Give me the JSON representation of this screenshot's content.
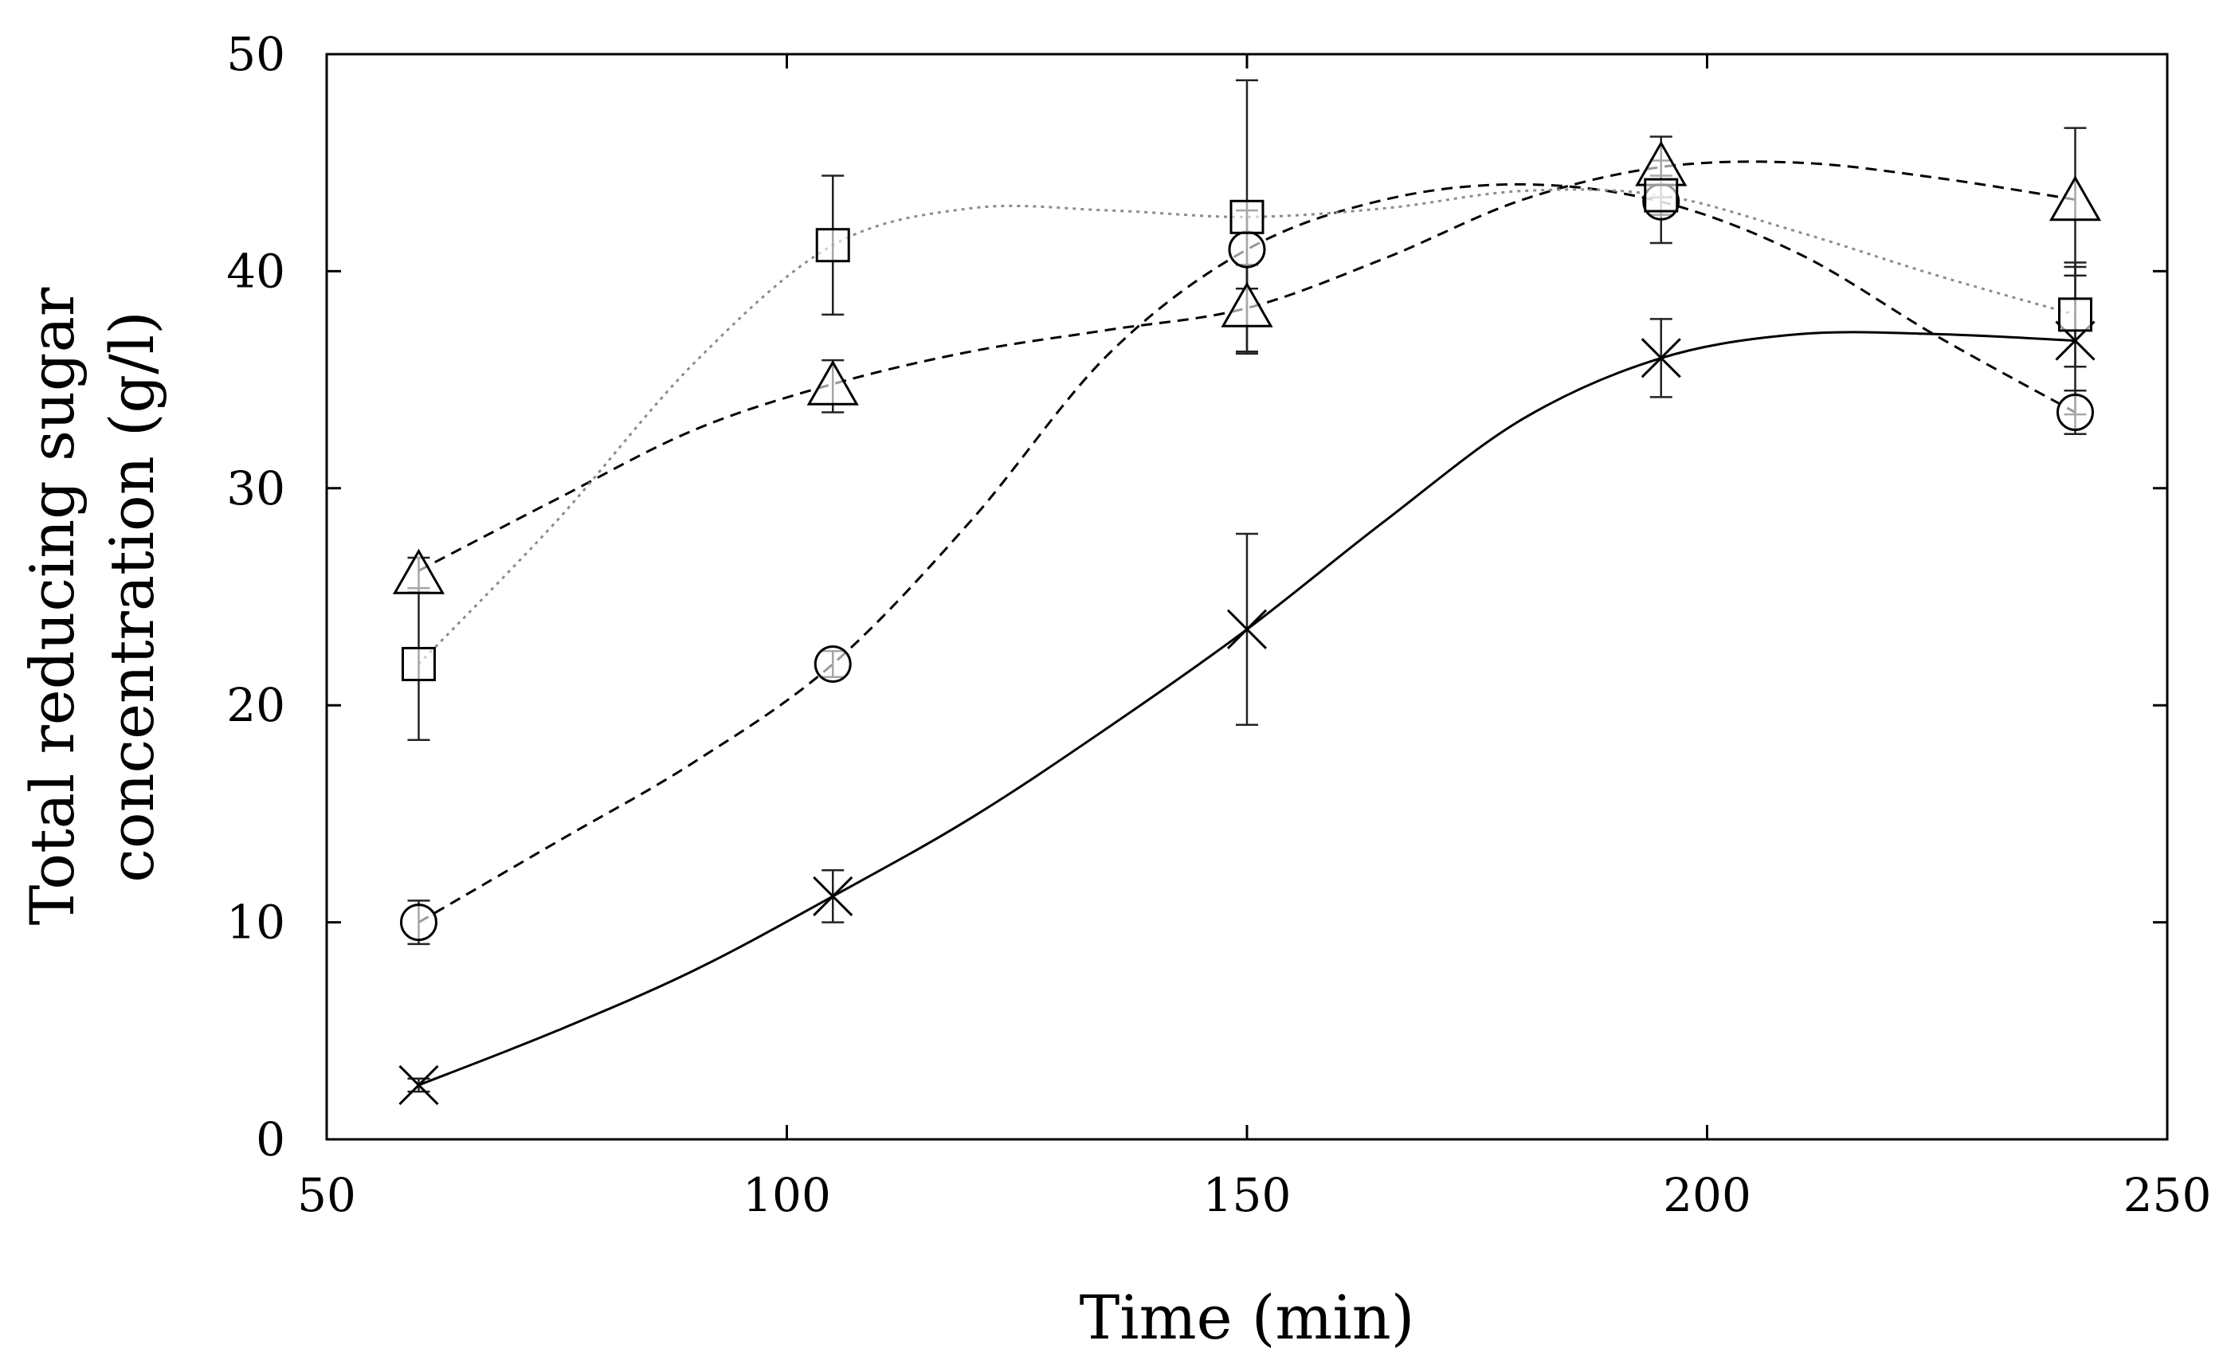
{
  "chart_data": {
    "type": "line",
    "title": "",
    "xlabel": "Time (min)",
    "ylabel_lines": [
      "Total reducing sugar",
      "concentration (g/l)"
    ],
    "xlim": [
      50,
      250
    ],
    "ylim": [
      0,
      50
    ],
    "xticks": [
      50,
      100,
      150,
      200,
      250
    ],
    "yticks": [
      0,
      10,
      20,
      30,
      40,
      50
    ],
    "xtick_labels": [
      "50",
      "100",
      "150",
      "200",
      "250"
    ],
    "ytick_labels": [
      "0",
      "10",
      "20",
      "30",
      "40",
      "50"
    ],
    "grid": false,
    "x": [
      60,
      105,
      150,
      195,
      240
    ],
    "series": [
      {
        "name": "cross",
        "marker": "x",
        "line_style": "solid",
        "color": "#000000",
        "values": [
          2.5,
          11.2,
          23.5,
          36.0,
          36.8
        ],
        "errors": [
          0.3,
          1.2,
          4.4,
          1.8,
          3.4
        ],
        "curve": [
          [
            60,
            2.5
          ],
          [
            75,
            5.0
          ],
          [
            90,
            7.8
          ],
          [
            105,
            11.2
          ],
          [
            120,
            14.8
          ],
          [
            135,
            19.0
          ],
          [
            150,
            23.5
          ],
          [
            165,
            28.5
          ],
          [
            180,
            33.2
          ],
          [
            195,
            36.0
          ],
          [
            210,
            37.1
          ],
          [
            225,
            37.1
          ],
          [
            240,
            36.8
          ]
        ]
      },
      {
        "name": "circle",
        "marker": "circle",
        "line_style": "dashed",
        "color": "#000000",
        "values": [
          10.0,
          21.9,
          41.0,
          43.2,
          33.5
        ],
        "errors": [
          1.0,
          0.6,
          1.8,
          1.9,
          1.0
        ],
        "curve": [
          [
            60,
            10.0
          ],
          [
            75,
            13.7
          ],
          [
            90,
            17.4
          ],
          [
            105,
            21.9
          ],
          [
            120,
            28.5
          ],
          [
            135,
            36.2
          ],
          [
            150,
            41.0
          ],
          [
            165,
            43.3
          ],
          [
            180,
            44.0
          ],
          [
            195,
            43.2
          ],
          [
            210,
            40.8
          ],
          [
            225,
            37.0
          ],
          [
            240,
            33.5
          ]
        ]
      },
      {
        "name": "triangle",
        "marker": "triangle",
        "line_style": "dashed",
        "color": "#000000",
        "values": [
          26.0,
          34.7,
          38.3,
          44.8,
          43.2
        ],
        "errors": [
          0.8,
          1.2,
          2.0,
          1.4,
          3.4
        ],
        "curve": [
          [
            60,
            26.2
          ],
          [
            75,
            29.5
          ],
          [
            90,
            32.7
          ],
          [
            105,
            34.8
          ],
          [
            120,
            36.3
          ],
          [
            135,
            37.3
          ],
          [
            150,
            38.3
          ],
          [
            165,
            40.6
          ],
          [
            180,
            43.3
          ],
          [
            195,
            44.8
          ],
          [
            210,
            45.0
          ],
          [
            225,
            44.3
          ],
          [
            240,
            43.3
          ]
        ]
      },
      {
        "name": "square",
        "marker": "square",
        "line_style": "dotted",
        "color": "#8c8c8c",
        "values": [
          21.9,
          41.2,
          42.5,
          43.5,
          38.0
        ],
        "errors": [
          3.5,
          3.2,
          6.3,
          0.9,
          2.4
        ],
        "curve": [
          [
            60,
            21.9
          ],
          [
            75,
            28.5
          ],
          [
            90,
            35.8
          ],
          [
            105,
            41.2
          ],
          [
            120,
            42.9
          ],
          [
            135,
            42.8
          ],
          [
            150,
            42.5
          ],
          [
            165,
            42.9
          ],
          [
            180,
            43.7
          ],
          [
            195,
            43.5
          ],
          [
            210,
            41.8
          ],
          [
            225,
            39.8
          ],
          [
            240,
            38.0
          ]
        ]
      }
    ]
  }
}
